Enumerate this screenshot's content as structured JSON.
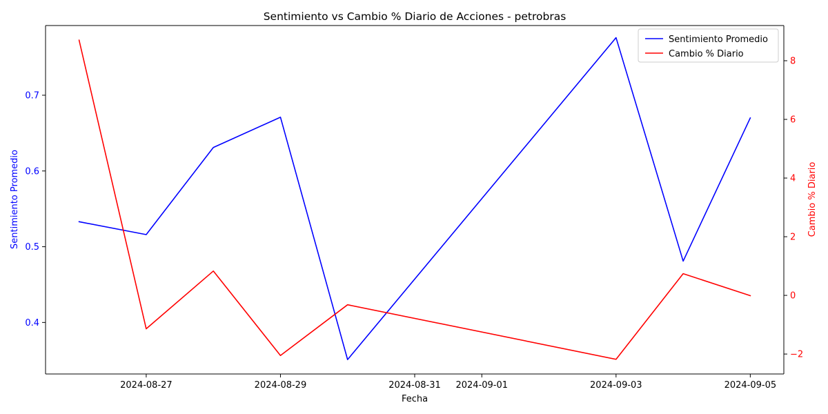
{
  "chart_data": {
    "type": "line",
    "title": "Sentimiento vs Cambio % Diario de Acciones - petrobras",
    "xlabel": "Fecha",
    "ylabel_left": "Sentimiento Promedio",
    "ylabel_right": "Cambio % Diario",
    "x": [
      "2024-08-26",
      "2024-08-27",
      "2024-08-28",
      "2024-08-29",
      "2024-08-30",
      "2024-09-03",
      "2024-09-04",
      "2024-09-05"
    ],
    "x_ticks": [
      "2024-08-27",
      "2024-08-29",
      "2024-08-31",
      "2024-09-01",
      "2024-09-03",
      "2024-09-05"
    ],
    "xlim": [
      "2024-08-25.5",
      "2024-09-05.5"
    ],
    "ylim_left": [
      0.332,
      0.792
    ],
    "ylim_right": [
      -2.68,
      9.2
    ],
    "y_ticks_left": [
      0.4,
      0.5,
      0.6,
      0.7
    ],
    "y_ticks_right": [
      -2,
      0,
      2,
      4,
      6,
      8
    ],
    "legend_position": "top-right",
    "series": [
      {
        "name": "Sentimiento Promedio",
        "axis": "left",
        "color": "#0000ff",
        "x": [
          "2024-08-26",
          "2024-08-27",
          "2024-08-28",
          "2024-08-29",
          "2024-08-30",
          "2024-09-03",
          "2024-09-04",
          "2024-09-05"
        ],
        "values": [
          0.533,
          0.516,
          0.631,
          0.671,
          0.351,
          0.776,
          0.481,
          0.67
        ]
      },
      {
        "name": "Cambio % Diario",
        "axis": "right",
        "color": "#ff0000",
        "x": [
          "2024-08-26",
          "2024-08-27",
          "2024-08-28",
          "2024-08-29",
          "2024-08-30",
          "2024-09-03",
          "2024-09-04",
          "2024-09-05"
        ],
        "values": [
          8.7,
          -1.14,
          0.83,
          -2.05,
          -0.32,
          -2.18,
          0.74,
          -0.01
        ]
      }
    ]
  }
}
